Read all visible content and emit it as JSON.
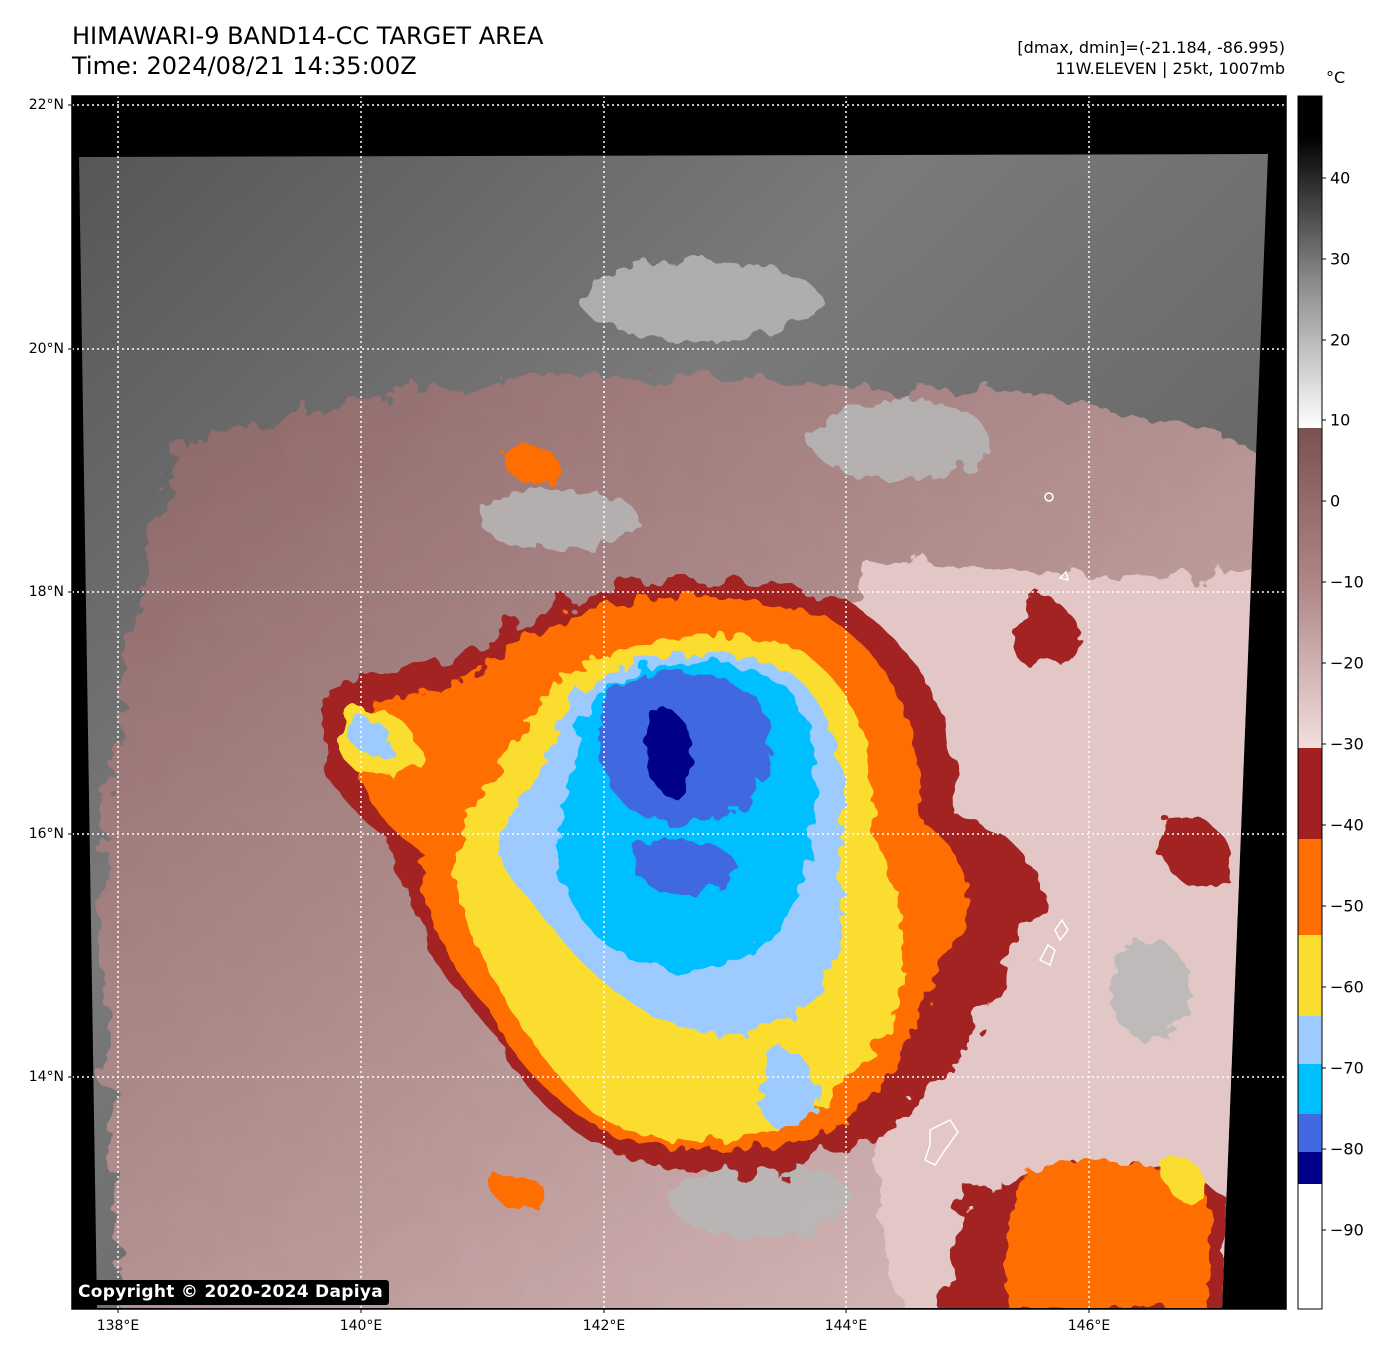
{
  "header": {
    "title_line1": "HIMAWARI-9 BAND14-CC TARGET AREA",
    "title_line2": "Time: 2024/08/21 14:35:00Z",
    "meta_line1": "[dmax, dmin]=(-21.184, -86.995)",
    "meta_line2": "11W.ELEVEN | 25kt, 1007mb"
  },
  "map": {
    "lat_labels": [
      "22°N",
      "20°N",
      "18°N",
      "16°N",
      "14°N"
    ],
    "lon_labels": [
      "138°E",
      "140°E",
      "142°E",
      "144°E",
      "146°E"
    ],
    "grid": "dotted white",
    "storm_center": {
      "lat": 16.6,
      "lon": 142.5
    }
  },
  "colorbar": {
    "unit": "°C",
    "tick_labels": [
      "40",
      "30",
      "20",
      "10",
      "0",
      "−10",
      "−20",
      "−30",
      "−40",
      "−50",
      "−60",
      "−70",
      "−80",
      "−90"
    ],
    "range": [
      -100,
      50
    ],
    "bands": [
      {
        "from": -100,
        "to": -84,
        "color": "#ffffff"
      },
      {
        "from": -84,
        "to": -80,
        "color": "#00008b"
      },
      {
        "from": -80,
        "to": -76,
        "color": "#4169e1"
      },
      {
        "from": -76,
        "to": -70,
        "color": "#00bfff"
      },
      {
        "from": -70,
        "to": -64,
        "color": "#9ecbff"
      },
      {
        "from": -64,
        "to": -54,
        "color": "#fadd2f"
      },
      {
        "from": -54,
        "to": -42,
        "color": "#ff6e00"
      },
      {
        "from": -42,
        "to": -31,
        "color": "#a32020"
      },
      {
        "from": -31,
        "to": 8,
        "color": "gradient-pink-brown"
      },
      {
        "from": 8,
        "to": 50,
        "color": "gradient-gray"
      }
    ]
  },
  "copyright": "Copyright © 2020-2024 Dapiya"
}
